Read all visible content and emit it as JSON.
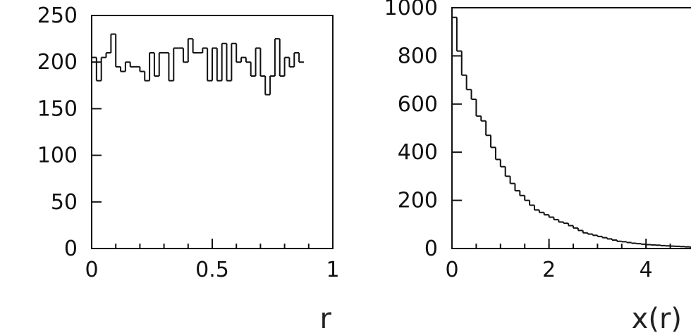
{
  "chart_data": [
    {
      "type": "histogram",
      "xlabel": "r",
      "ylabel": "",
      "xlim": [
        0,
        1
      ],
      "ylim": [
        0,
        250
      ],
      "x_ticks": [
        {
          "value": 0,
          "label": "0"
        },
        {
          "value": 0.5,
          "label": "0.5"
        },
        {
          "value": 1,
          "label": "1"
        }
      ],
      "y_ticks": [
        {
          "value": 0,
          "label": "0"
        },
        {
          "value": 50,
          "label": "50"
        },
        {
          "value": 100,
          "label": "100"
        },
        {
          "value": 150,
          "label": "150"
        },
        {
          "value": 200,
          "label": "200"
        },
        {
          "value": 250,
          "label": "250"
        }
      ],
      "bin_width": 0.02,
      "values": [
        205,
        180,
        205,
        210,
        230,
        195,
        190,
        200,
        195,
        195,
        190,
        180,
        210,
        185,
        210,
        210,
        180,
        215,
        215,
        200,
        225,
        210,
        210,
        215,
        180,
        215,
        180,
        220,
        180,
        220,
        200,
        205,
        200,
        185,
        215,
        185,
        165,
        185,
        225,
        185,
        205,
        195,
        210,
        200
      ],
      "grid": false,
      "legend": "none"
    },
    {
      "type": "histogram",
      "xlabel": "x(r)",
      "ylabel": "",
      "xlim": [
        0,
        5
      ],
      "ylim": [
        0,
        1000
      ],
      "x_ticks": [
        {
          "value": 0,
          "label": "0"
        },
        {
          "value": 2,
          "label": "2"
        },
        {
          "value": 4,
          "label": "4"
        }
      ],
      "y_ticks": [
        {
          "value": 0,
          "label": "0"
        },
        {
          "value": 200,
          "label": "200"
        },
        {
          "value": 400,
          "label": "400"
        },
        {
          "value": 600,
          "label": "600"
        },
        {
          "value": 800,
          "label": "800"
        },
        {
          "value": 1000,
          "label": "1000"
        }
      ],
      "bin_width": 0.1,
      "values": [
        960,
        820,
        720,
        660,
        620,
        550,
        530,
        470,
        420,
        370,
        340,
        300,
        270,
        240,
        220,
        200,
        180,
        160,
        150,
        140,
        130,
        120,
        110,
        105,
        95,
        85,
        75,
        65,
        60,
        55,
        50,
        45,
        40,
        35,
        30,
        28,
        25,
        22,
        20,
        18,
        16,
        15,
        14,
        12,
        11,
        10,
        9,
        8,
        7,
        6,
        5
      ],
      "grid": false,
      "legend": "none"
    }
  ]
}
